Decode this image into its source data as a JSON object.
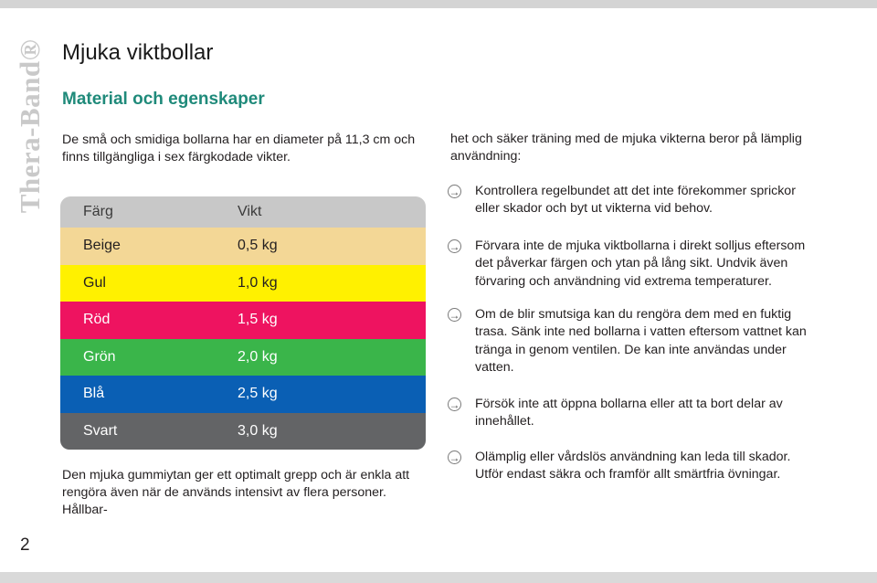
{
  "brand": {
    "logo_text": "Thera-Band®"
  },
  "page": {
    "number": "2"
  },
  "title": "Mjuka viktbollar",
  "subtitle": "Material och egenskaper",
  "intro": "De små och smidiga bollarna har en diameter på 11,3 cm och finns tillgängliga i sex färgkodade vikter.",
  "table": {
    "headers": {
      "color": "Färg",
      "weight": "Vikt"
    },
    "rows": [
      {
        "color": "Beige",
        "weight": "0,5 kg",
        "bg": "#f3d796",
        "text_color": "#231f20"
      },
      {
        "color": "Gul",
        "weight": "1,0 kg",
        "bg": "#fff100",
        "text_color": "#231f20"
      },
      {
        "color": "Röd",
        "weight": "1,5 kg",
        "bg": "#ee1360",
        "text_color": "#ffffff"
      },
      {
        "color": "Grön",
        "weight": "2,0 kg",
        "bg": "#3ab54a",
        "text_color": "#ffffff"
      },
      {
        "color": "Blå",
        "weight": "2,5 kg",
        "bg": "#0a5fb4",
        "text_color": "#ffffff"
      },
      {
        "color": "Svart",
        "weight": "3,0 kg",
        "bg": "#636466",
        "text_color": "#ffffff"
      }
    ]
  },
  "outro": "Den mjuka gummiytan ger ett optimalt grepp och är enkla att rengöra även när de används intensivt av flera personer. Hållbar-",
  "right_intro": "het och säker träning med de mjuka vikterna beror på lämplig användning:",
  "bullets": [
    "Kontrollera regelbundet att det inte förekommer sprickor eller skador och byt ut vikterna vid behov.",
    "Förvara inte de mjuka viktbollarna i direkt solljus eftersom det påverkar färgen och ytan på lång sikt. Undvik även förvaring och användning vid extrema temperaturer.",
    "Om de blir smutsiga kan du rengöra dem med en fuktig trasa. Sänk inte ned bollarna i vatten eftersom vattnet kan tränga in genom ventilen. De kan inte användas under vatten.",
    "Försök inte att öppna bollarna eller att ta bort delar av innehållet.",
    "Olämplig eller vårdslös användning kan leda till skador. Utför endast säkra och framför allt smärtfria övningar."
  ],
  "colors": {
    "subtitle": "#1f8a7a",
    "table_header": "#c8c8c8",
    "logo": "#c9c9c9"
  }
}
